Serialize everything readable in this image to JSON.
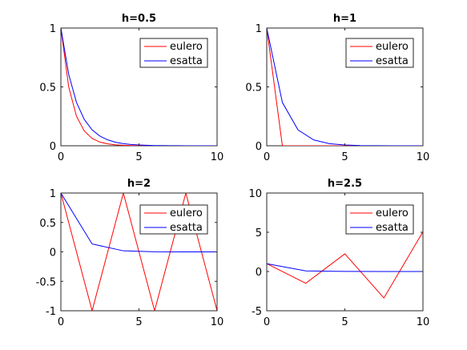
{
  "chart_data": [
    {
      "type": "line",
      "title": "h=0.5",
      "xlim": [
        0,
        10
      ],
      "ylim": [
        0,
        1
      ],
      "xticks": [
        0,
        5,
        10
      ],
      "yticks": [
        0,
        0.5,
        1
      ],
      "xtick_labels": [
        "0",
        "5",
        "10"
      ],
      "ytick_labels": [
        "0",
        "0.5",
        "1"
      ],
      "legend": "top-right",
      "series": [
        {
          "name": "eulero",
          "color": "#ff0000",
          "x": [
            0,
            0.5,
            1,
            1.5,
            2,
            2.5,
            3,
            3.5,
            4,
            4.5,
            5,
            5.5,
            6,
            6.5,
            7,
            7.5,
            8,
            8.5,
            9,
            9.5,
            10
          ],
          "y": [
            1,
            0.5,
            0.25,
            0.125,
            0.0625,
            0.031,
            0.016,
            0.008,
            0.004,
            0.002,
            0.001,
            0,
            0,
            0,
            0,
            0,
            0,
            0,
            0,
            0,
            0
          ]
        },
        {
          "name": "esatta",
          "color": "#0000ff",
          "x": [
            0,
            0.5,
            1,
            1.5,
            2,
            2.5,
            3,
            3.5,
            4,
            4.5,
            5,
            5.5,
            6,
            6.5,
            7,
            7.5,
            8,
            8.5,
            9,
            9.5,
            10
          ],
          "y": [
            1,
            0.607,
            0.368,
            0.223,
            0.135,
            0.082,
            0.05,
            0.03,
            0.018,
            0.011,
            0.007,
            0.004,
            0.002,
            0.002,
            0.001,
            0.001,
            0,
            0,
            0,
            0,
            0
          ]
        }
      ]
    },
    {
      "type": "line",
      "title": "h=1",
      "xlim": [
        0,
        10
      ],
      "ylim": [
        0,
        1
      ],
      "xticks": [
        0,
        5,
        10
      ],
      "yticks": [
        0,
        0.5,
        1
      ],
      "xtick_labels": [
        "0",
        "5",
        "10"
      ],
      "ytick_labels": [
        "0",
        "0.5",
        "1"
      ],
      "legend": "top-right",
      "series": [
        {
          "name": "eulero",
          "color": "#ff0000",
          "x": [
            0,
            1,
            2,
            3,
            4,
            5,
            6,
            7,
            8,
            9,
            10
          ],
          "y": [
            1,
            0,
            0,
            0,
            0,
            0,
            0,
            0,
            0,
            0,
            0
          ]
        },
        {
          "name": "esatta",
          "color": "#0000ff",
          "x": [
            0,
            1,
            2,
            3,
            4,
            5,
            6,
            7,
            8,
            9,
            10
          ],
          "y": [
            1,
            0.368,
            0.135,
            0.05,
            0.018,
            0.007,
            0.002,
            0.001,
            0,
            0,
            0
          ]
        }
      ]
    },
    {
      "type": "line",
      "title": "h=2",
      "xlim": [
        0,
        10
      ],
      "ylim": [
        -1,
        1
      ],
      "xticks": [
        0,
        5,
        10
      ],
      "yticks": [
        -1,
        -0.5,
        0,
        0.5,
        1
      ],
      "xtick_labels": [
        "0",
        "5",
        "10"
      ],
      "ytick_labels": [
        "-1",
        "-0.5",
        "0",
        "0.5",
        "1"
      ],
      "legend": "top-right",
      "series": [
        {
          "name": "eulero",
          "color": "#ff0000",
          "x": [
            0,
            2,
            4,
            6,
            8,
            10
          ],
          "y": [
            1,
            -1,
            1,
            -1,
            1,
            -1
          ]
        },
        {
          "name": "esatta",
          "color": "#0000ff",
          "x": [
            0,
            2,
            4,
            6,
            8,
            10
          ],
          "y": [
            1,
            0.135,
            0.018,
            0.002,
            0,
            0
          ]
        }
      ]
    },
    {
      "type": "line",
      "title": "h=2.5",
      "xlim": [
        0,
        10
      ],
      "ylim": [
        -5,
        10
      ],
      "xticks": [
        0,
        5,
        10
      ],
      "yticks": [
        -5,
        0,
        5,
        10
      ],
      "xtick_labels": [
        "0",
        "5",
        "10"
      ],
      "ytick_labels": [
        "-5",
        "0",
        "5",
        "10"
      ],
      "legend": "top-right",
      "series": [
        {
          "name": "eulero",
          "color": "#ff0000",
          "x": [
            0,
            2.5,
            5,
            7.5,
            10
          ],
          "y": [
            1,
            -1.5,
            2.25,
            -3.375,
            5.0625
          ]
        },
        {
          "name": "esatta",
          "color": "#0000ff",
          "x": [
            0,
            2.5,
            5,
            7.5,
            10
          ],
          "y": [
            1,
            0.082,
            0.007,
            0.001,
            0
          ]
        }
      ]
    }
  ]
}
